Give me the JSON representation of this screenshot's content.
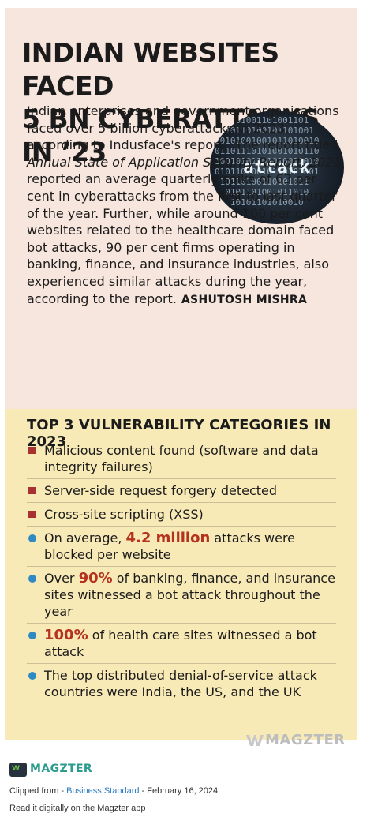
{
  "article": {
    "headline_line1": "INDIAN WEBSITES FACED",
    "headline_line2": "5 BN CYBERATTACKS IN ’23",
    "body_part1": "Indian enterprises and government organisations faced over 5 billion cyberattacks in 2023, according to Indusface's report . The report titled ",
    "body_italic": "Annual State of Application Security Report, 2023",
    "body_part2": " reported an average quarterly spike of 63 per cent in cyberattacks from the first to last quarter of the year. Further, while around 100 per cent websites related to the healthcare domain faced bot attacks, 90 per cent firms operating in banking, finance, and insurance industries, also experienced similar attacks during the year, according to the report.",
    "byline": "ASHUTOSH MISHRA",
    "image_word": "attack"
  },
  "panel": {
    "title": "TOP 3 VULNERABILITY CATEGORIES IN 2023",
    "items": [
      {
        "text": "Malicious content found (software and data integrity failures)"
      },
      {
        "text": "Server-side request forgery detected"
      },
      {
        "text": "Cross-site scripting (XSS)"
      },
      {
        "pre": "On average, ",
        "highlight": "4.2 million",
        "post": " attacks were blocked per website"
      },
      {
        "pre": "Over ",
        "highlight": "90%",
        "post": " of banking, finance, and insurance sites witnessed a bot attack throughout the year"
      },
      {
        "pre": "",
        "highlight": "100%",
        "post": " of health care sites witnessed a bot attack"
      },
      {
        "text": "The top distributed denial-of-service attack countries were India, the US, and the UK"
      }
    ]
  },
  "watermark": "MAGZTER",
  "footer": {
    "brand": "MAGZTER",
    "clipped_prefix": "Clipped from - ",
    "publication": "Business Standard",
    "clipped_suffix": " - February 16, 2024",
    "read_line": "Read it digitally on the Magzter app"
  },
  "colors": {
    "article_bg": "#f7e6dd",
    "panel_bg": "#f8eab6",
    "highlight": "#b4321e",
    "square_bullet": "#a83232",
    "round_bullet": "#2f8ac4",
    "brand": "#2a9b8c",
    "link": "#2a7bc0"
  }
}
